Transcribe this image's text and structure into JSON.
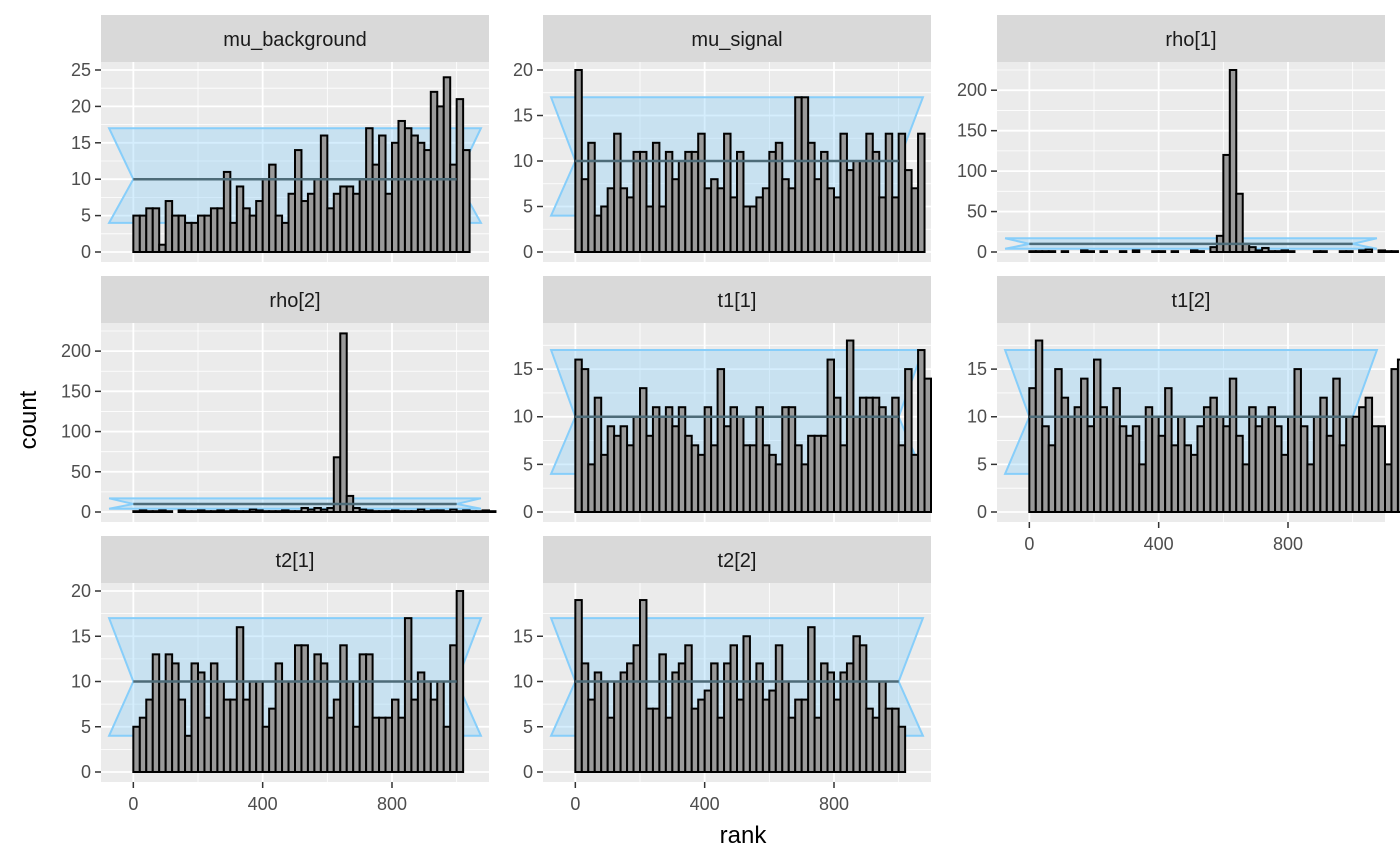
{
  "chart_data": {
    "type": "bar",
    "layout": "faceted histogram grid, 3 columns",
    "xlabel": "rank",
    "ylabel": "count",
    "xlim": [
      -100,
      1100
    ],
    "xticks": [
      0,
      400,
      800
    ],
    "bin_width": 20,
    "bin_start": 0,
    "reference_band": {
      "expected": 10,
      "lower": 4,
      "upper": 17,
      "color": "#87CEFA",
      "line_color": "#4d6b78"
    },
    "colors": {
      "panel_bg": "#EBEBEB",
      "grid": "#ffffff",
      "strip_bg": "#D9D9D9",
      "bar_fill": "#9a9a9a",
      "bar_stroke": "#000000"
    },
    "facets": [
      {
        "name": "mu_background",
        "ylim": [
          0,
          25
        ],
        "yticks": [
          0,
          5,
          10,
          15,
          20,
          25
        ],
        "show_x_axis": false,
        "counts": [
          5,
          5,
          6,
          6,
          1,
          7,
          5,
          5,
          4,
          4,
          5,
          5,
          6,
          6,
          11,
          4,
          9,
          6,
          5,
          7,
          10,
          12,
          5,
          4,
          8,
          14,
          7,
          8,
          10,
          16,
          6,
          8,
          9,
          9,
          8,
          10,
          17,
          12,
          16,
          8,
          15,
          18,
          17,
          16,
          15,
          14,
          22,
          20,
          24,
          12,
          21,
          14
        ]
      },
      {
        "name": "mu_signal",
        "ylim": [
          0,
          20
        ],
        "yticks": [
          0,
          5,
          10,
          15,
          20
        ],
        "show_x_axis": false,
        "counts": [
          20,
          8,
          12,
          4,
          5,
          7,
          13,
          7,
          6,
          11,
          11,
          5,
          12,
          5,
          11,
          8,
          10,
          11,
          11,
          13,
          7,
          8,
          7,
          13,
          6,
          11,
          5,
          5,
          6,
          7,
          11,
          12,
          8,
          7,
          17,
          17,
          12,
          8,
          11,
          7,
          6,
          13,
          9,
          10,
          10,
          13,
          11,
          6,
          13,
          6,
          13,
          9,
          7,
          13
        ]
      },
      {
        "name": "rho[1]",
        "ylim": [
          0,
          225
        ],
        "yticks": [
          0,
          50,
          100,
          150,
          200
        ],
        "show_x_axis": false,
        "counts": [
          1,
          1,
          1,
          1,
          0,
          1,
          0,
          0,
          2,
          1,
          0,
          1,
          0,
          0,
          1,
          0,
          2,
          0,
          0,
          1,
          1,
          0,
          1,
          0,
          0,
          2,
          1,
          0,
          6,
          20,
          120,
          225,
          72,
          10,
          6,
          2,
          5,
          1,
          1,
          2,
          1,
          0,
          0,
          0,
          1,
          1,
          0,
          0,
          1,
          1,
          0,
          2,
          3,
          0,
          2,
          1,
          1,
          0,
          1,
          0,
          0,
          1,
          1,
          1,
          0,
          0,
          0,
          0,
          1,
          1,
          0,
          1,
          1,
          0,
          0
        ]
      },
      {
        "name": "rho[2]",
        "ylim": [
          0,
          225
        ],
        "yticks": [
          0,
          50,
          100,
          150,
          200
        ],
        "show_x_axis": false,
        "counts": [
          1,
          2,
          1,
          1,
          2,
          1,
          0,
          2,
          1,
          1,
          2,
          1,
          1,
          2,
          1,
          2,
          1,
          1,
          3,
          2,
          1,
          1,
          1,
          2,
          1,
          1,
          5,
          3,
          5,
          3,
          5,
          68,
          222,
          20,
          5,
          3,
          2,
          1,
          1,
          1,
          2,
          1,
          1,
          1,
          3,
          1,
          2,
          2,
          1,
          3,
          1,
          2,
          1,
          1,
          2,
          1
        ]
      },
      {
        "name": "t1[1]",
        "ylim": [
          0,
          19
        ],
        "yticks": [
          0,
          5,
          10,
          15
        ],
        "show_x_axis": false,
        "counts": [
          16,
          15,
          5,
          12,
          6,
          9,
          8,
          9,
          7,
          10,
          13,
          8,
          11,
          10,
          11,
          9,
          11,
          8,
          7,
          6,
          11,
          7,
          15,
          9,
          11,
          10,
          7,
          7,
          11,
          7,
          6,
          5,
          11,
          11,
          7,
          5,
          8,
          8,
          8,
          16,
          12,
          7,
          18,
          10,
          12,
          12,
          12,
          11,
          10,
          12,
          7,
          15,
          6,
          17,
          14
        ]
      },
      {
        "name": "t1[2]",
        "ylim": [
          0,
          19
        ],
        "yticks": [
          0,
          5,
          10,
          15
        ],
        "show_x_axis": true,
        "counts": [
          13,
          18,
          9,
          7,
          15,
          12,
          10,
          11,
          14,
          9,
          16,
          11,
          10,
          13,
          9,
          8,
          9,
          5,
          11,
          10,
          8,
          13,
          7,
          10,
          7,
          6,
          9,
          11,
          12,
          10,
          9,
          14,
          8,
          5,
          11,
          9,
          10,
          11,
          9,
          6,
          10,
          15,
          9,
          5,
          10,
          12,
          8,
          14,
          7,
          10,
          10,
          11,
          12,
          9,
          9,
          5,
          15,
          16
        ]
      },
      {
        "name": "t2[1]",
        "ylim": [
          0,
          20
        ],
        "yticks": [
          0,
          5,
          10,
          15,
          20
        ],
        "show_x_axis": true,
        "counts": [
          5,
          6,
          8,
          13,
          10,
          13,
          12,
          8,
          4,
          12,
          11,
          6,
          12,
          10,
          8,
          8,
          16,
          8,
          10,
          10,
          5,
          7,
          12,
          10,
          10,
          14,
          14,
          10,
          13,
          12,
          6,
          8,
          14,
          10,
          5,
          13,
          13,
          6,
          6,
          6,
          8,
          6,
          17,
          8,
          11,
          10,
          8,
          10,
          5,
          14,
          20
        ]
      },
      {
        "name": "t2[2]",
        "ylim": [
          0,
          20
        ],
        "yticks": [
          0,
          5,
          10,
          15
        ],
        "show_x_axis": true,
        "counts": [
          19,
          12,
          8,
          11,
          10,
          6,
          10,
          11,
          12,
          14,
          19,
          7,
          7,
          13,
          6,
          11,
          12,
          14,
          7,
          8,
          9,
          12,
          6,
          12,
          14,
          8,
          15,
          10,
          12,
          8,
          9,
          14,
          10,
          6,
          8,
          8,
          16,
          6,
          12,
          11,
          8,
          11,
          12,
          15,
          14,
          7,
          6,
          10,
          7,
          7,
          5
        ]
      }
    ]
  }
}
